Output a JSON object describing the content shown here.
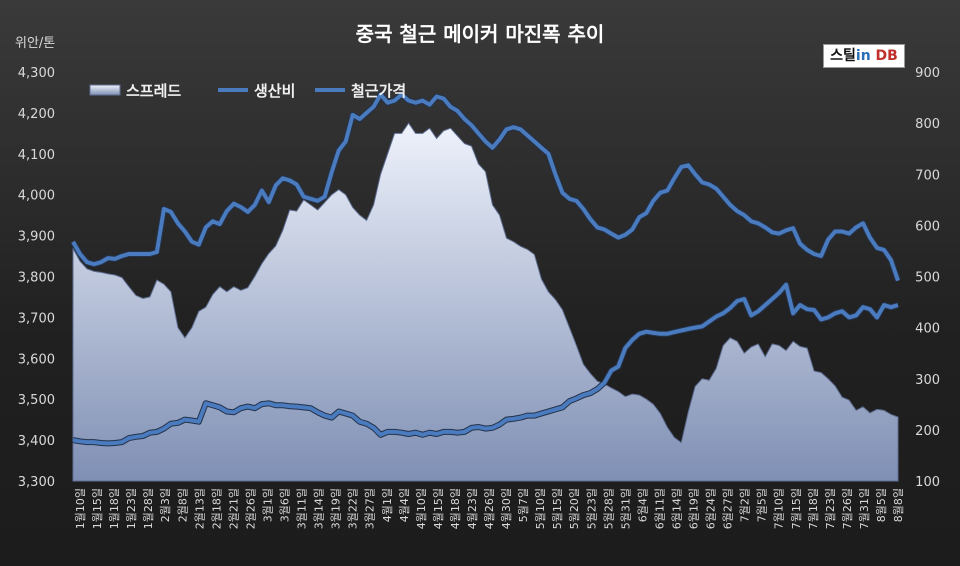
{
  "chart_data": {
    "type": "area",
    "title": "중국 철근 메이커 마진폭 추이",
    "unit_label": "위안/톤",
    "logo_text": "스틸in DB",
    "logo_parts": [
      "스틸",
      "in",
      "DB"
    ],
    "legend": [
      "스프레드",
      "생산비",
      "철근가격"
    ],
    "legend_position": "top-left",
    "grid": false,
    "y_left": {
      "min": 3300,
      "max": 4300,
      "ticks": [
        3300,
        3400,
        3500,
        3600,
        3700,
        3800,
        3900,
        4000,
        4100,
        4200,
        "4,300"
      ]
    },
    "y_right": {
      "min": 100,
      "max": 900,
      "ticks": [
        100,
        200,
        300,
        400,
        500,
        600,
        700,
        800,
        900
      ]
    },
    "x_tick_labels": [
      "1월10일",
      "1월15일",
      "1월18일",
      "1월23일",
      "1월28일",
      "2월3일",
      "2월8일",
      "2월13일",
      "2월18일",
      "2월21일",
      "2월26일",
      "3월1일",
      "3월6일",
      "3월11일",
      "3월14일",
      "3월19일",
      "3월22일",
      "3월27일",
      "4월1일",
      "4월4일",
      "4월10일",
      "4월15일",
      "4월18일",
      "4월23일",
      "4월26일",
      "4월30일",
      "5월7일",
      "5월10일",
      "5월15일",
      "5월20일",
      "5월23일",
      "5월28일",
      "5월31일",
      "6월4일",
      "6월11일",
      "6월14일",
      "6월19일",
      "6월24일",
      "6월27일",
      "7월2일",
      "7월5일",
      "7월10일",
      "7월15일",
      "7월18일",
      "7월23일",
      "7월26일",
      "7월31일",
      "8월5일",
      "8월8일"
    ],
    "series": [
      {
        "name": "스프레드",
        "axis": "right",
        "values": [
          555,
          530,
          515,
          510,
          508,
          505,
          503,
          498,
          480,
          463,
          457,
          460,
          493,
          485,
          470,
          400,
          380,
          400,
          432,
          440,
          465,
          480,
          470,
          480,
          473,
          478,
          500,
          525,
          545,
          560,
          590,
          630,
          628,
          650,
          640,
          630,
          645,
          660,
          670,
          660,
          635,
          620,
          610,
          640,
          700,
          740,
          780,
          780,
          800,
          780,
          780,
          790,
          770,
          785,
          790,
          775,
          760,
          755,
          720,
          705,
          640,
          620,
          575,
          568,
          559,
          553,
          543,
          495,
          470,
          455,
          435,
          400,
          365,
          328,
          310,
          295,
          290,
          282,
          275,
          265,
          270,
          268,
          260,
          250,
          232,
          205,
          185,
          175,
          235,
          285,
          300,
          297,
          320,
          365,
          380,
          373,
          350,
          362,
          368,
          343,
          368,
          365,
          355,
          373,
          363,
          360,
          315,
          312,
          300,
          286,
          264,
          258,
          238,
          245,
          233,
          240,
          238,
          230,
          225
        ]
      },
      {
        "name": "생산비",
        "axis": "left",
        "values": [
          3400,
          3397,
          3395,
          3395,
          3393,
          3392,
          3393,
          3395,
          3405,
          3408,
          3410,
          3418,
          3420,
          3428,
          3440,
          3442,
          3450,
          3448,
          3445,
          3490,
          3485,
          3480,
          3470,
          3468,
          3478,
          3482,
          3478,
          3488,
          3490,
          3485,
          3485,
          3483,
          3482,
          3480,
          3478,
          3468,
          3460,
          3455,
          3470,
          3465,
          3460,
          3445,
          3440,
          3430,
          3413,
          3420,
          3420,
          3418,
          3415,
          3418,
          3413,
          3418,
          3415,
          3420,
          3420,
          3418,
          3420,
          3430,
          3432,
          3428,
          3430,
          3438,
          3450,
          3452,
          3455,
          3460,
          3460,
          3465,
          3470,
          3475,
          3480,
          3495,
          3502,
          3510,
          3515,
          3525,
          3540,
          3570,
          3580,
          3625,
          3645,
          3660,
          3665,
          3662,
          3660,
          3660,
          3664,
          3668,
          3672,
          3675,
          3678,
          3690,
          3702,
          3710,
          3723,
          3740,
          3745,
          3705,
          3715,
          3730,
          3745,
          3760,
          3780,
          3710,
          3730,
          3720,
          3718,
          3695,
          3700,
          3710,
          3715,
          3700,
          3705,
          3725,
          3720,
          3700,
          3730,
          3725,
          3730
        ]
      },
      {
        "name": "철근가격",
        "axis": "left",
        "values": [
          3885,
          3855,
          3835,
          3830,
          3835,
          3845,
          3843,
          3850,
          3855,
          3855,
          3855,
          3855,
          3860,
          3965,
          3958,
          3930,
          3910,
          3885,
          3878,
          3920,
          3935,
          3928,
          3960,
          3978,
          3970,
          3958,
          3975,
          4010,
          3982,
          4023,
          4040,
          4035,
          4025,
          3995,
          3990,
          3985,
          3995,
          4055,
          4108,
          4130,
          4195,
          4185,
          4200,
          4215,
          4245,
          4225,
          4230,
          4245,
          4230,
          4225,
          4230,
          4220,
          4240,
          4235,
          4215,
          4205,
          4185,
          4170,
          4150,
          4130,
          4115,
          4135,
          4160,
          4165,
          4160,
          4145,
          4130,
          4115,
          4100,
          4050,
          4005,
          3990,
          3985,
          3965,
          3940,
          3920,
          3915,
          3905,
          3895,
          3902,
          3915,
          3945,
          3955,
          3985,
          4005,
          4010,
          4040,
          4068,
          4072,
          4050,
          4030,
          4025,
          4015,
          3995,
          3975,
          3960,
          3950,
          3935,
          3930,
          3920,
          3908,
          3905,
          3913,
          3918,
          3880,
          3865,
          3855,
          3850,
          3890,
          3910,
          3910,
          3905,
          3920,
          3930,
          3895,
          3870,
          3865,
          3840,
          3790
        ]
      }
    ],
    "colors": {
      "spread_top": "#eef2fb",
      "spread_bottom": "#7f8fb4",
      "lines": "#4a7bbe",
      "line_outline": "#24324a",
      "text": "#d9d9d9",
      "title": "#ffffff",
      "background": "#2b2b2b"
    }
  }
}
